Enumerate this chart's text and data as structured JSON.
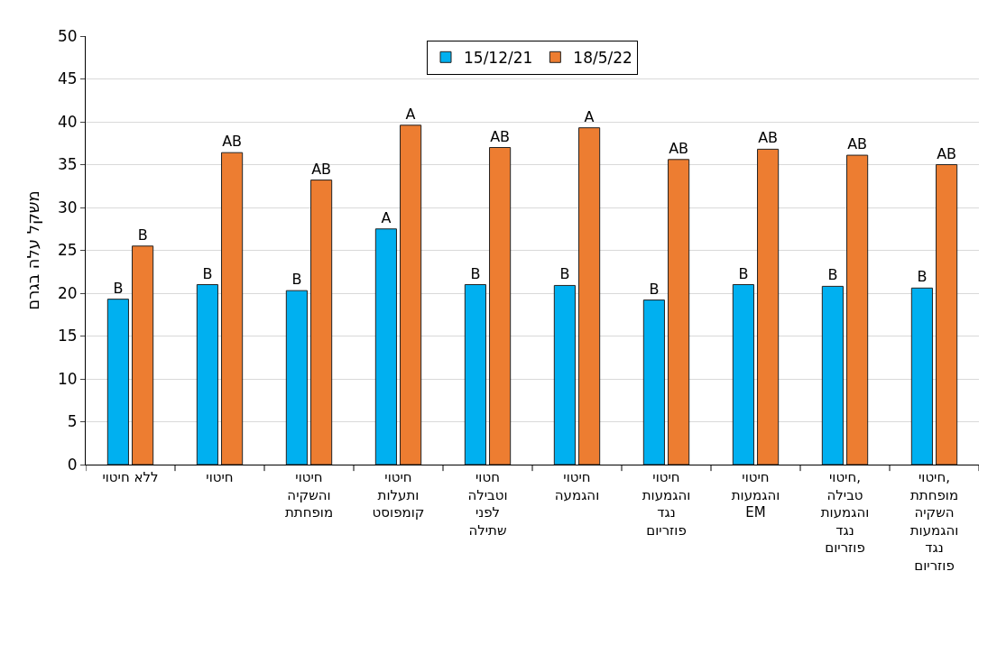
{
  "chart_data": {
    "type": "bar",
    "ylabel": "משקל עלה בגרם",
    "categories": [
      "ללא חיטוי",
      "חיטוי",
      "חיטוי\nוהשקיה\nמופחתת",
      "חיטוי\nותעלות\nקומפוסט",
      "חטוי\nוטבילה\nלפני\nשתילה",
      "חיטוי\nוהגמעה",
      "חיטוי\nוהגמעות\nנגד\nפוזריום",
      "חיטוי\nוהגמעות\nEM",
      "חיטוי,\nטבילה\nוהגמעות\nנגד\nפוזריום",
      "חיטוי,\nמופחתת\nהשקיה\nוהגמעות\nנגד\nפוזריום"
    ],
    "series": [
      {
        "name": "15/12/21",
        "color": "#00b0f0",
        "values": [
          19.3,
          21.0,
          20.3,
          27.5,
          21.0,
          20.9,
          19.2,
          21.0,
          20.8,
          20.6
        ],
        "value_labels": [
          "B",
          "B",
          "B",
          "A",
          "B",
          "B",
          "B",
          "B",
          "B",
          "B"
        ]
      },
      {
        "name": "18/5/22",
        "color": "#ed7d31",
        "values": [
          25.5,
          36.4,
          33.2,
          39.6,
          37.0,
          39.3,
          35.6,
          36.8,
          36.1,
          35.0
        ],
        "value_labels": [
          "B",
          "AB",
          "AB",
          "A",
          "AB",
          "A",
          "AB",
          "AB",
          "AB",
          "AB"
        ]
      }
    ],
    "ylim": [
      0,
      50
    ],
    "yticks": [
      0,
      5,
      10,
      15,
      20,
      25,
      30,
      35,
      40,
      45,
      50
    ],
    "grid": "y",
    "legend": "top"
  }
}
